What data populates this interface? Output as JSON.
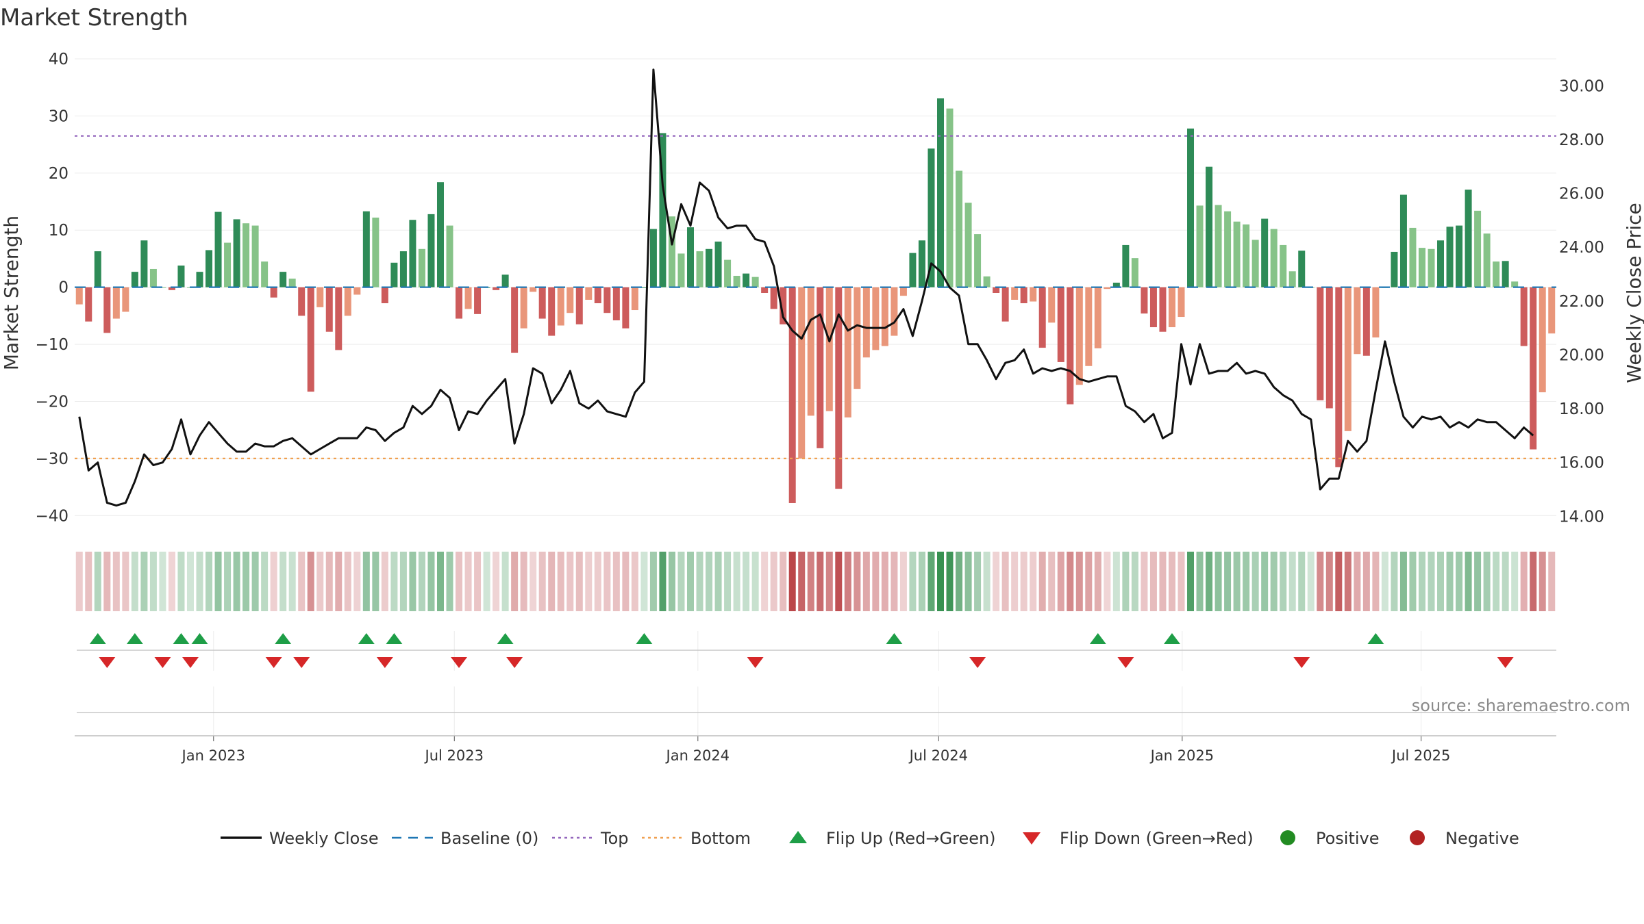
{
  "chart_data": {
    "type": "bar",
    "title": "Market Strength",
    "source": "source: sharemaestro.com",
    "xlabel": "",
    "ylabel": "Market Strength",
    "y2label": "Weekly Close Price",
    "ylim": [
      -42,
      40
    ],
    "y2lim": [
      13.6,
      31.0
    ],
    "yticks": [
      "40",
      "30",
      "20",
      "10",
      "0",
      "−10",
      "−20",
      "−30",
      "−40"
    ],
    "ytick_values": [
      40,
      30,
      20,
      10,
      0,
      -10,
      -20,
      -30,
      -40
    ],
    "y2ticks": [
      "30.00",
      "28.00",
      "26.00",
      "24.00",
      "22.00",
      "20.00",
      "18.00",
      "16.00",
      "14.00"
    ],
    "y2tick_values": [
      30,
      28,
      26,
      24,
      22,
      20,
      18,
      16,
      14
    ],
    "xticks": [
      {
        "label": "Jan 2023",
        "week": 15
      },
      {
        "label": "Jul 2023",
        "week": 41
      },
      {
        "label": "Jan 2024",
        "week": 67.3
      },
      {
        "label": "Jul 2024",
        "week": 93.3
      },
      {
        "label": "Jan 2025",
        "week": 119.6
      },
      {
        "label": "Jul 2025",
        "week": 145.4
      }
    ],
    "top_line": 26.5,
    "bottom_line": -30,
    "series": [
      {
        "name": "Market Strength",
        "values": [
          -3,
          -6,
          6.3,
          -8,
          -5.5,
          -4.3,
          2.7,
          8.2,
          3.2,
          0,
          -0.5,
          3.8,
          0,
          2.7,
          6.5,
          13.2,
          7.8,
          11.9,
          11.2,
          10.8,
          4.5,
          -1.8,
          2.7,
          1.5,
          -5,
          -18.3,
          -3.5,
          -7.8,
          -11,
          -5,
          -1.3,
          13.3,
          12.2,
          -2.8,
          4.3,
          6.3,
          11.8,
          6.7,
          12.8,
          18.4,
          10.8,
          -5.5,
          -3.8,
          -4.7,
          0,
          -0.5,
          2.2,
          -11.5,
          -7.2,
          -0.8,
          -5.5,
          -8.5,
          -6.7,
          -4.5,
          -6.5,
          -2.2,
          -2.8,
          -4.5,
          -5.8,
          -7.2,
          -4,
          0,
          10.2,
          27,
          12.4,
          5.9,
          10.5,
          6.3,
          6.7,
          8,
          4.8,
          2,
          2.4,
          1.8,
          -1,
          -3.8,
          -6.5,
          -37.8,
          -30,
          -22.5,
          -28.2,
          -21.7,
          -35.3,
          -22.8,
          -17.8,
          -12.3,
          -11,
          -10.3,
          -8.5,
          -1.5,
          6,
          8.2,
          24.3,
          33.1,
          31.3,
          20.4,
          14.8,
          9.3,
          1.9,
          -1,
          -6,
          -2.2,
          -2.8,
          -2.5,
          -10.6,
          -6.2,
          -13.1,
          -20.5,
          -17.1,
          -13.8,
          -10.7,
          -0.3,
          0.8,
          7.4,
          5.1,
          -4.6,
          -7,
          -7.8,
          -7,
          -5.2,
          27.8,
          14.3,
          21.1,
          14.4,
          13.3,
          11.5,
          11,
          8.3,
          12,
          10.2,
          7.4,
          2.8,
          6.4,
          0,
          -19.8,
          -21.2,
          -31.5,
          -25.2,
          -11.7,
          -12,
          -8.8,
          0,
          6.2,
          16.2,
          10.4,
          6.9,
          6.7,
          8.2,
          10.6,
          10.8,
          17.1,
          13.4,
          9.4,
          4.5,
          4.6,
          1,
          -10.3,
          -28.4,
          -18.4,
          -8.1
        ]
      },
      {
        "name": "Weekly Close",
        "values": [
          17.7,
          15.7,
          16,
          14.5,
          14.4,
          14.5,
          15.3,
          16.3,
          15.9,
          16,
          16.5,
          17.6,
          16.3,
          17,
          17.5,
          17.1,
          16.7,
          16.4,
          16.4,
          16.7,
          16.6,
          16.6,
          16.8,
          16.9,
          16.6,
          16.3,
          16.5,
          16.7,
          16.9,
          16.9,
          16.9,
          17.3,
          17.2,
          16.8,
          17.1,
          17.3,
          18.1,
          17.8,
          18.1,
          18.7,
          18.4,
          17.2,
          17.9,
          17.8,
          18.3,
          18.7,
          19.1,
          16.7,
          17.8,
          19.5,
          19.3,
          18.2,
          18.7,
          19.4,
          18.2,
          18,
          18.3,
          17.9,
          17.8,
          17.7,
          18.6,
          19,
          30.6,
          26.3,
          24.1,
          25.6,
          24.8,
          26.4,
          26.1,
          25.1,
          24.7,
          24.8,
          24.8,
          24.3,
          24.2,
          23.3,
          21.4,
          20.9,
          20.6,
          21.3,
          21.5,
          20.5,
          21.5,
          20.9,
          21.1,
          21,
          21,
          21,
          21.2,
          21.7,
          20.7,
          22,
          23.4,
          23.1,
          22.5,
          22.2,
          20.4,
          20.4,
          19.8,
          19.1,
          19.7,
          19.8,
          20.2,
          19.3,
          19.5,
          19.4,
          19.5,
          19.4,
          19.1,
          19,
          19.1,
          19.2,
          19.2,
          18.1,
          17.9,
          17.5,
          17.8,
          16.9,
          17.1,
          20.4,
          18.9,
          20.4,
          19.3,
          19.4,
          19.4,
          19.7,
          19.3,
          19.4,
          19.3,
          18.8,
          18.5,
          18.3,
          17.8,
          17.6,
          15,
          15.4,
          15.4,
          16.8,
          16.4,
          16.8,
          18.7,
          20.5,
          19,
          17.7,
          17.3,
          17.7,
          17.6,
          17.7,
          17.3,
          17.5,
          17.3,
          17.6,
          17.5,
          17.5,
          17.2,
          16.9,
          17.3,
          17
        ]
      }
    ],
    "strength_band": {
      "description": "Color-intensity strip mirroring the sign and magnitude of each weekly bar",
      "positive_color": "#2a8a46",
      "negative_color": "#b5363a"
    },
    "flip_up_weeks": [
      2,
      6,
      11,
      13,
      22,
      31,
      34,
      46,
      61,
      88,
      110,
      118,
      140
    ],
    "flip_down_weeks": [
      3,
      9,
      12,
      21,
      24,
      33,
      41,
      47,
      73,
      97,
      113,
      132,
      154
    ],
    "colors": {
      "positive_strong": "#2e8b57",
      "positive_light": "#86c388",
      "negative_strong": "#cd5c5c",
      "negative_light": "#e9967a",
      "price_line": "#111111",
      "baseline": "#1f77b4",
      "top_line": "#9467bd",
      "bottom_line": "#f0a050",
      "flip_up": "#1e9e47",
      "flip_down": "#d62728",
      "positive_dot": "#228b22",
      "negative_dot": "#b22222"
    },
    "legend": [
      {
        "label": "Weekly Close",
        "marker": "line",
        "color": "#111111"
      },
      {
        "label": "Baseline (0)",
        "marker": "dash",
        "color": "#1f77b4"
      },
      {
        "label": "Top",
        "marker": "dot",
        "color": "#9467bd"
      },
      {
        "label": "Bottom",
        "marker": "dot",
        "color": "#f0a050"
      },
      {
        "label": "Flip Up (Red→Green)",
        "marker": "triangle-up",
        "color": "#1e9e47"
      },
      {
        "label": "Flip Down (Green→Red)",
        "marker": "triangle-down",
        "color": "#d62728"
      },
      {
        "label": "Positive",
        "marker": "circle",
        "color": "#228b22"
      },
      {
        "label": "Negative",
        "marker": "circle",
        "color": "#b22222"
      }
    ]
  }
}
